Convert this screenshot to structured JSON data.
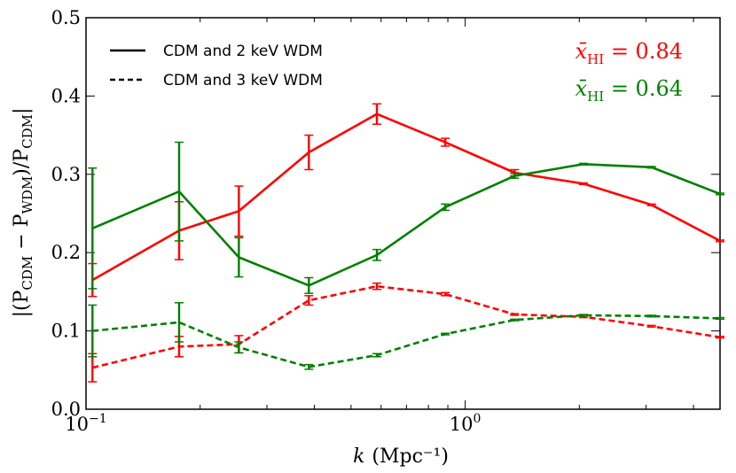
{
  "chart_data": {
    "type": "line",
    "title": "",
    "xlabel": "k (Mpc⁻¹)",
    "xlabel_var": "k",
    "xlabel_unit": "(Mpc⁻¹)",
    "ylabel": "|(P_CDM − P_WDM)/P_CDM|",
    "ylabel_display": "|(P",
    "ylabel_sub1": "CDM",
    "ylabel_mid": " − P",
    "ylabel_sub2": "WDM",
    "ylabel_mid2": ")/P",
    "ylabel_sub3": "CDM",
    "ylabel_end": "|",
    "x_scale": "log",
    "xlim": [
      0.1,
      4.7
    ],
    "ylim": [
      0.0,
      0.5
    ],
    "x_ticks": [
      {
        "value": 0.1,
        "base": "10",
        "exp": "−1"
      },
      {
        "value": 1.0,
        "base": "10",
        "exp": "0"
      }
    ],
    "y_ticks": [
      {
        "value": 0.0,
        "label": "0.0"
      },
      {
        "value": 0.1,
        "label": "0.1"
      },
      {
        "value": 0.2,
        "label": "0.2"
      },
      {
        "value": 0.3,
        "label": "0.3"
      },
      {
        "value": 0.4,
        "label": "0.4"
      },
      {
        "value": 0.5,
        "label": "0.5"
      }
    ],
    "x": [
      0.104,
      0.176,
      0.253,
      0.387,
      0.585,
      0.886,
      1.35,
      2.05,
      3.1,
      4.7
    ],
    "series": [
      {
        "name": "x̄HI = 0.84, 2 keV",
        "color": "#ff0000",
        "style": "solid",
        "values": [
          0.165,
          0.228,
          0.253,
          0.328,
          0.377,
          0.341,
          0.302,
          0.288,
          0.261,
          0.215
        ],
        "errors": [
          0.021,
          0.037,
          0.032,
          0.022,
          0.013,
          0.005,
          0.004,
          0.001,
          0.001,
          0.001
        ]
      },
      {
        "name": "x̄HI = 0.64, 2 keV",
        "color": "#008000",
        "style": "solid",
        "values": [
          0.231,
          0.278,
          0.194,
          0.158,
          0.197,
          0.258,
          0.298,
          0.313,
          0.309,
          0.275
        ],
        "errors": [
          0.077,
          0.063,
          0.025,
          0.01,
          0.007,
          0.004,
          0.003,
          0.001,
          0.001,
          0.001
        ]
      },
      {
        "name": "x̄HI = 0.84, 3 keV",
        "color": "#ff0000",
        "style": "dashed",
        "values": [
          0.053,
          0.08,
          0.083,
          0.139,
          0.157,
          0.147,
          0.121,
          0.118,
          0.106,
          0.092
        ],
        "errors": [
          0.018,
          0.013,
          0.011,
          0.006,
          0.004,
          0.002,
          0.001,
          0.001,
          0.001,
          0.001
        ]
      },
      {
        "name": "x̄HI = 0.64, 3 keV",
        "color": "#008000",
        "style": "dashed",
        "values": [
          0.1,
          0.111,
          0.079,
          0.054,
          0.069,
          0.096,
          0.114,
          0.12,
          0.119,
          0.116
        ],
        "errors": [
          0.033,
          0.025,
          0.007,
          0.003,
          0.002,
          0.001,
          0.001,
          0.001,
          0.001,
          0.001
        ]
      }
    ],
    "legend": {
      "placement": "top-left",
      "entries": [
        {
          "label": "CDM and 2 keV WDM",
          "style": "solid"
        },
        {
          "label": "CDM and 3 keV WDM",
          "style": "dashed"
        }
      ]
    },
    "annotations": [
      {
        "var": "x̄",
        "sub": "HI",
        "eq": " = 0.84",
        "color": "#ff0000"
      },
      {
        "var": "x̄",
        "sub": "HI",
        "eq": " = 0.64",
        "color": "#008000"
      }
    ]
  }
}
